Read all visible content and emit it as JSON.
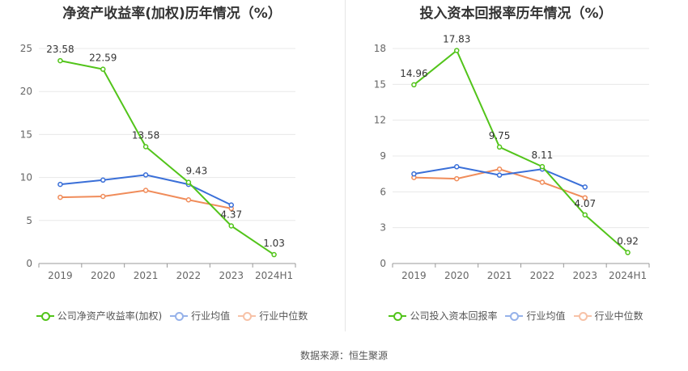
{
  "source": "数据来源：恒生聚源",
  "chart_data": [
    {
      "type": "line",
      "title": "净资产收益率(加权)历年情况（%）",
      "categories": [
        "2019",
        "2020",
        "2021",
        "2022",
        "2023",
        "2024H1"
      ],
      "ylim": [
        0,
        25
      ],
      "yticks": [
        0,
        5,
        10,
        15,
        20,
        25
      ],
      "grid": true,
      "legend_position": "bottom",
      "series": [
        {
          "name": "公司净资产收益率(加权)",
          "color": "#52c41a",
          "values": [
            23.58,
            22.59,
            13.58,
            9.43,
            4.37,
            1.03
          ],
          "labels": true
        },
        {
          "name": "行业均值",
          "color": "#3a6fd8",
          "values": [
            9.2,
            9.7,
            10.3,
            9.2,
            6.8,
            null
          ],
          "labels": false
        },
        {
          "name": "行业中位数",
          "color": "#f08c5a",
          "values": [
            7.7,
            7.8,
            8.5,
            7.4,
            6.4,
            null
          ],
          "labels": false
        }
      ]
    },
    {
      "type": "line",
      "title": "投入资本回报率历年情况（%）",
      "categories": [
        "2019",
        "2020",
        "2021",
        "2022",
        "2023",
        "2024H1"
      ],
      "ylim": [
        0,
        18
      ],
      "yticks": [
        0,
        3,
        6,
        9,
        12,
        15,
        18
      ],
      "grid": true,
      "legend_position": "bottom",
      "series": [
        {
          "name": "公司投入资本回报率",
          "color": "#52c41a",
          "values": [
            14.96,
            17.83,
            9.75,
            8.11,
            4.07,
            0.92
          ],
          "labels": true
        },
        {
          "name": "行业均值",
          "color": "#3a6fd8",
          "values": [
            7.5,
            8.1,
            7.4,
            7.9,
            6.4,
            null
          ],
          "labels": false
        },
        {
          "name": "行业中位数",
          "color": "#f08c5a",
          "values": [
            7.2,
            7.1,
            7.9,
            6.8,
            5.5,
            null
          ],
          "labels": false
        }
      ]
    }
  ]
}
